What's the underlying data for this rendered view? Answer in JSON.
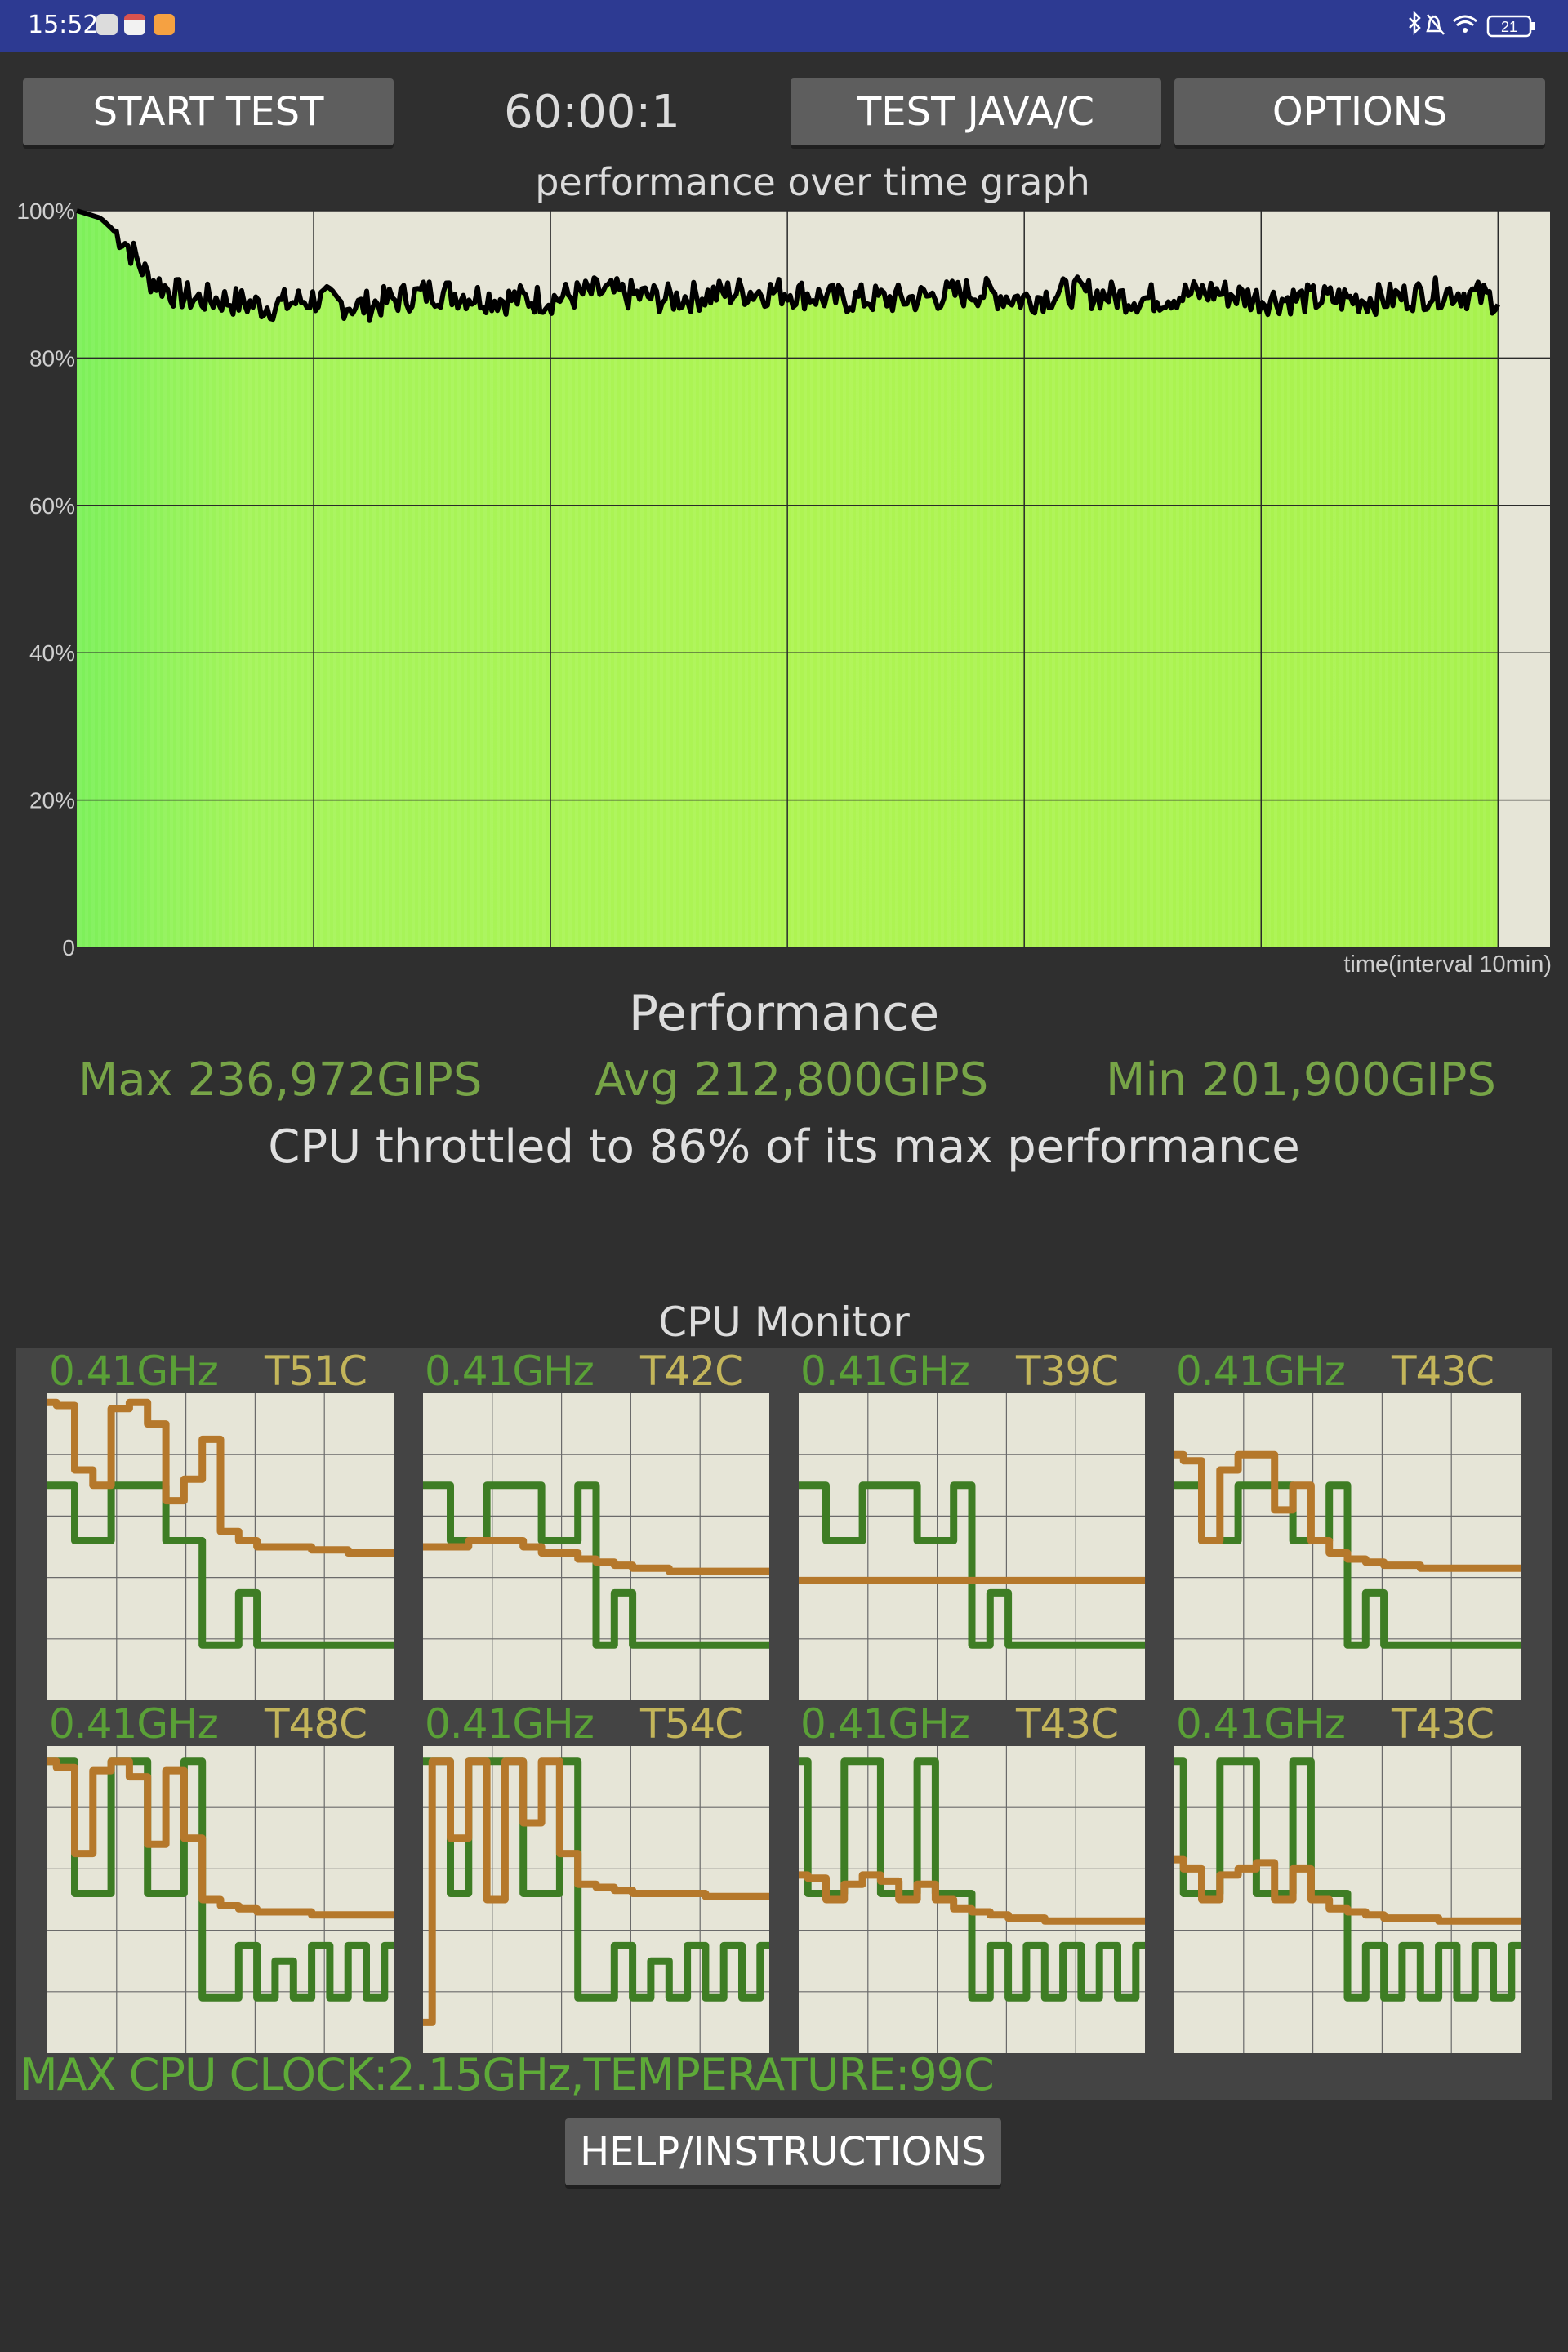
{
  "status_bar": {
    "time": "15:52",
    "battery": "21",
    "icons": [
      "settings-icon",
      "calendar-icon",
      "notes-icon",
      "bluetooth-icon",
      "mute-icon",
      "wifi-icon",
      "battery-icon"
    ]
  },
  "toolbar": {
    "start_label": "START TEST",
    "timer": "60:00:1",
    "java_label": "TEST JAVA/C",
    "options_label": "OPTIONS"
  },
  "graph": {
    "title": "performance over time graph",
    "ytick_labels": [
      "100%",
      "80%",
      "60%",
      "40%",
      "20%",
      "0"
    ],
    "x_label": "time(interval 10min)"
  },
  "chart_data": {
    "type": "area",
    "xlabel": "time(interval 10min)",
    "ylabel": "",
    "ylim": [
      0,
      100
    ],
    "grid": true,
    "x_minutes": [
      0,
      1,
      2,
      3,
      4,
      5,
      6,
      8,
      10,
      12,
      15,
      18,
      20,
      22,
      25,
      28,
      30,
      32,
      35,
      38,
      40,
      42,
      45,
      48,
      50,
      52,
      55,
      58,
      60
    ],
    "values_pct": [
      100,
      99,
      96,
      91,
      89,
      88,
      88,
      87,
      88,
      87,
      89,
      88,
      88,
      89,
      88,
      89,
      89,
      88,
      88,
      89,
      88,
      89,
      88,
      89,
      88,
      88,
      88,
      89,
      88
    ]
  },
  "performance": {
    "heading": "Performance",
    "max": "Max 236,972GIPS",
    "avg": "Avg 212,800GIPS",
    "min": "Min 201,900GIPS",
    "throttle": "CPU throttled to 86% of its max performance"
  },
  "cpu_monitor": {
    "title": "CPU Monitor",
    "freq_color": "#3e7d24",
    "temp_color": "#b5782b",
    "cores": [
      {
        "freq": "0.41GHz",
        "temp": "T51C",
        "freq_trace": [
          0.7,
          0.7,
          0.52,
          0.52,
          0.7,
          0.7,
          0.7,
          0.52,
          0.52,
          0.18,
          0.18,
          0.35,
          0.18,
          0.18,
          0.18,
          0.18,
          0.18,
          0.18,
          0.18,
          0.18
        ],
        "temp_trace": [
          0.97,
          0.96,
          0.75,
          0.7,
          0.95,
          0.97,
          0.9,
          0.65,
          0.72,
          0.85,
          0.55,
          0.52,
          0.5,
          0.5,
          0.5,
          0.49,
          0.49,
          0.48,
          0.48,
          0.48
        ]
      },
      {
        "freq": "0.41GHz",
        "temp": "T42C",
        "freq_trace": [
          0.7,
          0.7,
          0.52,
          0.52,
          0.7,
          0.7,
          0.7,
          0.52,
          0.52,
          0.7,
          0.18,
          0.35,
          0.18,
          0.18,
          0.18,
          0.18,
          0.18,
          0.18,
          0.18,
          0.18
        ],
        "temp_trace": [
          0.5,
          0.5,
          0.5,
          0.52,
          0.52,
          0.52,
          0.5,
          0.48,
          0.48,
          0.46,
          0.45,
          0.44,
          0.43,
          0.43,
          0.42,
          0.42,
          0.42,
          0.42,
          0.42,
          0.42
        ]
      },
      {
        "freq": "0.41GHz",
        "temp": "T39C",
        "freq_trace": [
          0.7,
          0.7,
          0.52,
          0.52,
          0.7,
          0.7,
          0.7,
          0.52,
          0.52,
          0.7,
          0.18,
          0.35,
          0.18,
          0.18,
          0.18,
          0.18,
          0.18,
          0.18,
          0.18,
          0.18
        ],
        "temp_trace": [
          0.39,
          0.39,
          0.39,
          0.39,
          0.39,
          0.39,
          0.39,
          0.39,
          0.39,
          0.39,
          0.39,
          0.39,
          0.39,
          0.39,
          0.39,
          0.39,
          0.39,
          0.39,
          0.39,
          0.39
        ]
      },
      {
        "freq": "0.41GHz",
        "temp": "T43C",
        "freq_trace": [
          0.7,
          0.7,
          0.52,
          0.52,
          0.7,
          0.7,
          0.7,
          0.52,
          0.52,
          0.7,
          0.18,
          0.35,
          0.18,
          0.18,
          0.18,
          0.18,
          0.18,
          0.18,
          0.18,
          0.18
        ],
        "temp_trace": [
          0.8,
          0.78,
          0.52,
          0.75,
          0.8,
          0.8,
          0.62,
          0.7,
          0.52,
          0.48,
          0.46,
          0.45,
          0.44,
          0.44,
          0.43,
          0.43,
          0.43,
          0.43,
          0.43,
          0.43
        ]
      },
      {
        "freq": "0.41GHz",
        "temp": "T48C",
        "freq_trace": [
          0.95,
          0.95,
          0.52,
          0.52,
          0.95,
          0.95,
          0.52,
          0.52,
          0.95,
          0.18,
          0.18,
          0.35,
          0.18,
          0.3,
          0.18,
          0.35,
          0.18,
          0.35,
          0.18,
          0.35
        ],
        "temp_trace": [
          0.95,
          0.93,
          0.65,
          0.92,
          0.95,
          0.9,
          0.68,
          0.92,
          0.7,
          0.5,
          0.48,
          0.47,
          0.46,
          0.46,
          0.46,
          0.45,
          0.45,
          0.45,
          0.45,
          0.45
        ]
      },
      {
        "freq": "0.41GHz",
        "temp": "T54C",
        "freq_trace": [
          0.95,
          0.95,
          0.52,
          0.95,
          0.95,
          0.95,
          0.52,
          0.52,
          0.95,
          0.18,
          0.18,
          0.35,
          0.18,
          0.3,
          0.18,
          0.35,
          0.18,
          0.35,
          0.18,
          0.35
        ],
        "temp_trace": [
          0.1,
          0.95,
          0.7,
          0.95,
          0.5,
          0.95,
          0.75,
          0.95,
          0.65,
          0.55,
          0.54,
          0.53,
          0.52,
          0.52,
          0.52,
          0.52,
          0.51,
          0.51,
          0.51,
          0.51
        ]
      },
      {
        "freq": "0.41GHz",
        "temp": "T43C",
        "freq_trace": [
          0.95,
          0.52,
          0.52,
          0.95,
          0.95,
          0.52,
          0.52,
          0.95,
          0.52,
          0.52,
          0.18,
          0.35,
          0.18,
          0.35,
          0.18,
          0.35,
          0.18,
          0.35,
          0.18,
          0.35
        ],
        "temp_trace": [
          0.58,
          0.57,
          0.5,
          0.55,
          0.58,
          0.56,
          0.5,
          0.55,
          0.5,
          0.47,
          0.46,
          0.45,
          0.44,
          0.44,
          0.43,
          0.43,
          0.43,
          0.43,
          0.43,
          0.43
        ]
      },
      {
        "freq": "0.41GHz",
        "temp": "T43C",
        "freq_trace": [
          0.95,
          0.52,
          0.52,
          0.95,
          0.95,
          0.52,
          0.52,
          0.95,
          0.52,
          0.52,
          0.18,
          0.35,
          0.18,
          0.35,
          0.18,
          0.35,
          0.18,
          0.35,
          0.18,
          0.35
        ],
        "temp_trace": [
          0.63,
          0.6,
          0.5,
          0.58,
          0.6,
          0.62,
          0.5,
          0.6,
          0.5,
          0.47,
          0.46,
          0.45,
          0.44,
          0.44,
          0.44,
          0.43,
          0.43,
          0.43,
          0.43,
          0.43
        ]
      }
    ],
    "max_clock_text": "MAX CPU CLOCK:2.15GHz,TEMPERATURE:99C"
  },
  "help_label": "HELP/INSTRUCTIONS"
}
